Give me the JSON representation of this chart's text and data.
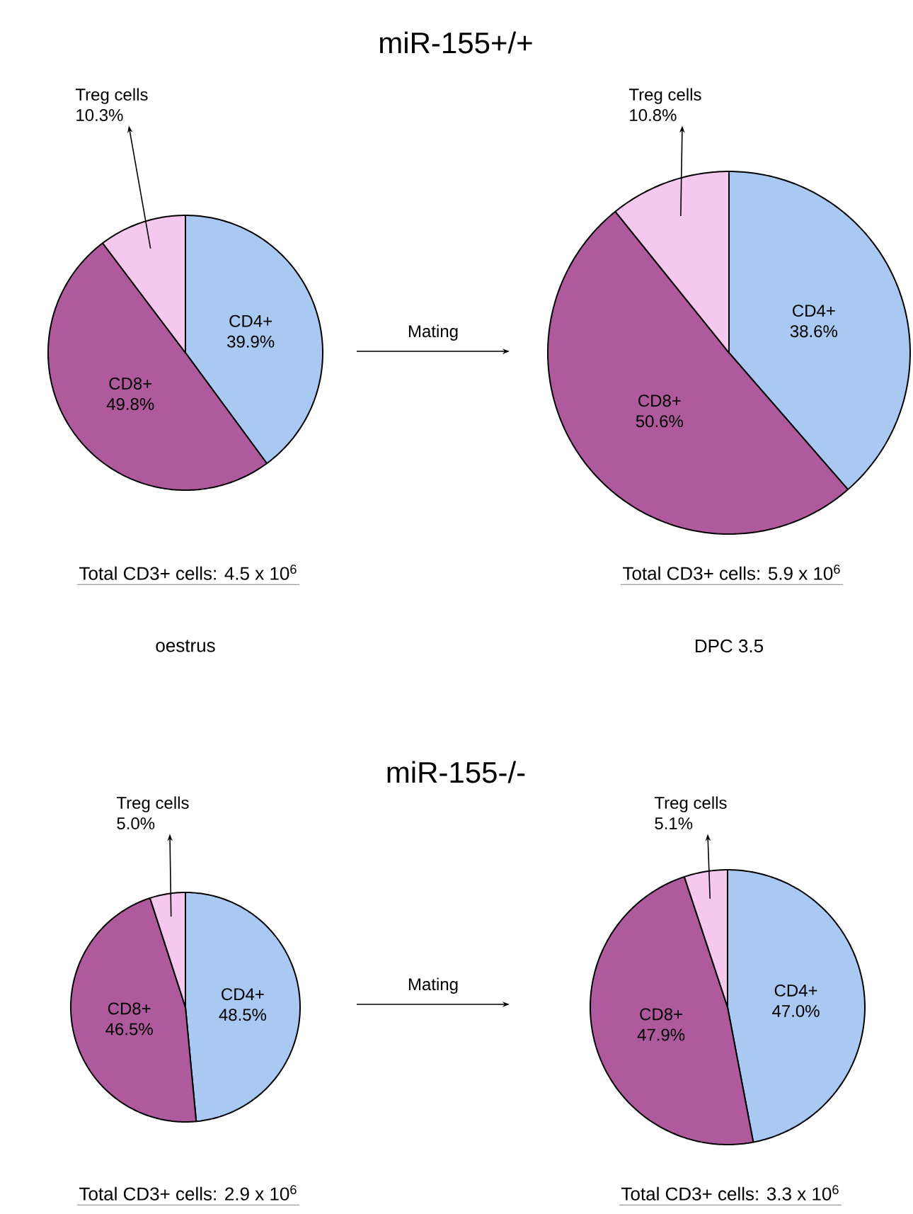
{
  "chart_data": [
    {
      "type": "pie",
      "title": "miR-155+/+",
      "categories": [
        "CD4+",
        "CD8+",
        "Treg cells"
      ],
      "values": [
        39.9,
        49.8,
        10.3
      ],
      "value_labels": [
        "39.9%",
        "49.8%",
        "10.3%"
      ],
      "colors": [
        "#a9c9f2",
        "#b05a9e",
        "#f5c8ee"
      ],
      "annotations": [
        "Total CD3+ cells: 4.5 x 10$^{6}$",
        "oestrus"
      ]
    },
    {
      "type": "pie",
      "categories": [
        "CD4+",
        "CD8+",
        "Treg cells"
      ],
      "values": [
        38.6,
        50.6,
        10.8
      ],
      "value_labels": [
        "38.6%",
        "50.6%",
        "10.8%"
      ],
      "colors": [
        "#a9c9f2",
        "#b05a9e",
        "#f5c8ee"
      ],
      "annotations": [
        "Mating",
        "Total CD3+ cells: 5.9 x 10$^{6}$",
        "DPC 3.5"
      ]
    },
    {
      "type": "pie",
      "title": "miR-155-/-",
      "categories": [
        "CD4+",
        "CD8+",
        "Treg cells"
      ],
      "values": [
        48.5,
        46.5,
        5.0
      ],
      "value_labels": [
        "48.5%",
        "46.5%",
        "5.0%"
      ],
      "colors": [
        "#a9c9f2",
        "#b05a9e",
        "#f5c8ee"
      ],
      "annotations": [
        "Total CD3+ cells: 2.9 x 10$^{6}$"
      ]
    },
    {
      "type": "pie",
      "categories": [
        "CD4+",
        "CD8+",
        "Treg cells"
      ],
      "values": [
        47.0,
        47.9,
        5.1
      ],
      "value_labels": [
        "47.0%",
        "47.9%",
        "5.1%"
      ],
      "colors": [
        "#a9c9f2",
        "#b05a9e",
        "#f5c8ee"
      ],
      "annotations": [
        "Mating",
        "Total CD3+ cells: 3.3 x 10$^{6}$"
      ]
    }
  ]
}
